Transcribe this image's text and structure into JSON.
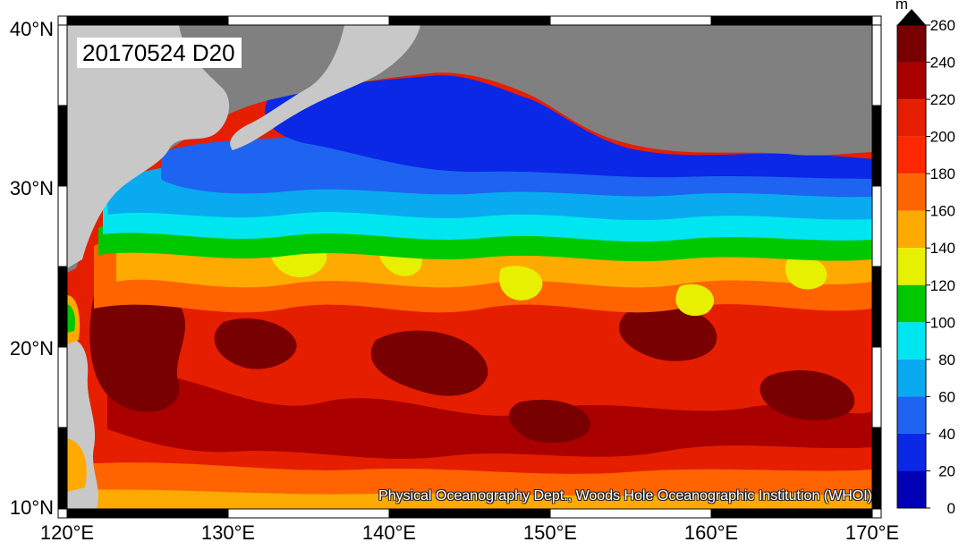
{
  "map": {
    "stamp": "20170524 D20",
    "credit": "Physical Oceanography Dept., Woods Hole Oceanographic Institution (WHOI)",
    "lat_labels": [
      "40°N",
      "30°N",
      "20°N",
      "10°N"
    ],
    "lon_labels": [
      "120°E",
      "130°E",
      "140°E",
      "150°E",
      "160°E",
      "170°E"
    ],
    "land_color": "#808080",
    "coast_color": "#c8c8c8"
  },
  "colorbar": {
    "unit": "m",
    "ticks": [
      "0",
      "20",
      "40",
      "60",
      "80",
      "100",
      "120",
      "140",
      "160",
      "180",
      "200",
      "220",
      "240",
      "260"
    ],
    "colors": [
      "#0000b4",
      "#0a28e6",
      "#1e64f0",
      "#0aaaf0",
      "#00e6f0",
      "#00c800",
      "#e6f000",
      "#ffaa00",
      "#ff6400",
      "#ff2800",
      "#e61e00",
      "#aa0000",
      "#780000"
    ]
  }
}
